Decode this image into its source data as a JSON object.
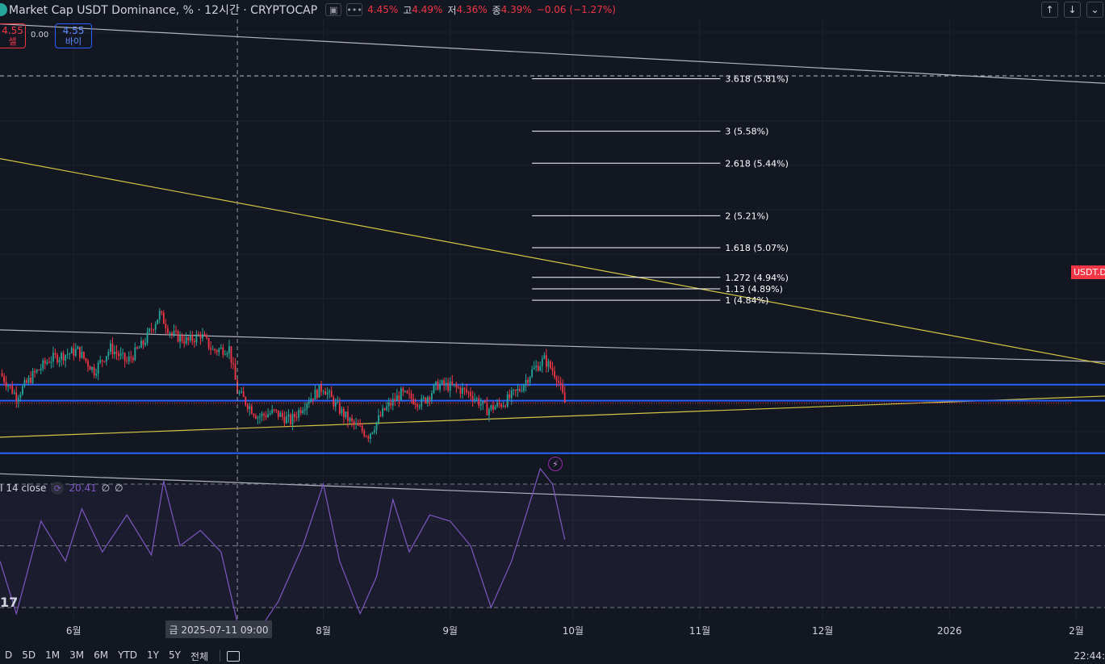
{
  "header": {
    "title": "Market Cap USDT Dominance, % · 12시간 · CRYPTOCAP",
    "ohlc": {
      "open_value": "4.45%",
      "high_label": "고",
      "high_value": "4.49%",
      "low_label": "저",
      "low_value": "4.36%",
      "close_label": "종",
      "close_value": "4.39%",
      "change": "−0.06 (−1.27%)"
    }
  },
  "order_buttons": {
    "sell_price": "4.55",
    "sell_label": "셀",
    "spread": "0.00",
    "buy_price": "4.55",
    "buy_label": "바이"
  },
  "price_label": "USDT.D",
  "rsi_legend": {
    "label": "I 14 close",
    "value": "20.41",
    "extra1": "∅",
    "extra2": "∅"
  },
  "crosshair_date": "금 2025-07-11  09:00",
  "range_buttons": [
    "D",
    "5D",
    "1M",
    "3M",
    "6M",
    "YTD",
    "1Y",
    "5Y",
    "전체"
  ],
  "clock": "22:44:",
  "icons": {
    "header_camera": "camera-icon",
    "header_more": "more-dots-icon",
    "nav_up": "arrow-up-icon",
    "nav_down": "arrow-down-icon",
    "alert": "lightning-icon",
    "calendar": "calendar-icon",
    "rsi_source": "refresh-icon",
    "tv_logo": "tradingview-logo-icon"
  },
  "colors": {
    "up": "#26a69a",
    "down": "#f23645",
    "support": "#2962ff",
    "trend_yellow": "#d4c545",
    "channel": "#b2b5be",
    "rsi": "#7e57c2"
  },
  "chart_data": {
    "type": "candlestick",
    "x_ticks": [
      {
        "date": "2025-06-01",
        "label": "6월"
      },
      {
        "date": "2025-08-01",
        "label": "8월"
      },
      {
        "date": "2025-09-01",
        "label": "9월"
      },
      {
        "date": "2025-10-01",
        "label": "10월"
      },
      {
        "date": "2025-11-01",
        "label": "11월"
      },
      {
        "date": "2025-12-01",
        "label": "12월"
      },
      {
        "date": "2026-01-01",
        "label": "2026"
      },
      {
        "date": "2026-02-01",
        "label": "2월"
      }
    ],
    "xlim": [
      "2025-05-14",
      "2026-02-08"
    ],
    "ylim": [
      4.07,
      6.07
    ],
    "last_close": 4.39,
    "close_path": [
      [
        "2025-05-14",
        4.52
      ],
      [
        "2025-05-18",
        4.42
      ],
      [
        "2025-05-22",
        4.51
      ],
      [
        "2025-05-26",
        4.58
      ],
      [
        "2025-06-02",
        4.62
      ],
      [
        "2025-06-06",
        4.53
      ],
      [
        "2025-06-10",
        4.63
      ],
      [
        "2025-06-14",
        4.57
      ],
      [
        "2025-06-18",
        4.65
      ],
      [
        "2025-06-22",
        4.78
      ],
      [
        "2025-06-25",
        4.69
      ],
      [
        "2025-06-29",
        4.66
      ],
      [
        "2025-07-02",
        4.69
      ],
      [
        "2025-07-05",
        4.62
      ],
      [
        "2025-07-09",
        4.63
      ],
      [
        "2025-07-11",
        4.44
      ],
      [
        "2025-07-16",
        4.33
      ],
      [
        "2025-07-20",
        4.35
      ],
      [
        "2025-07-24",
        4.31
      ],
      [
        "2025-07-28",
        4.4
      ],
      [
        "2025-08-01",
        4.46
      ],
      [
        "2025-08-04",
        4.38
      ],
      [
        "2025-08-08",
        4.3
      ],
      [
        "2025-08-12",
        4.25
      ],
      [
        "2025-08-16",
        4.36
      ],
      [
        "2025-08-20",
        4.43
      ],
      [
        "2025-08-25",
        4.39
      ],
      [
        "2025-08-29",
        4.47
      ],
      [
        "2025-09-02",
        4.46
      ],
      [
        "2025-09-06",
        4.43
      ],
      [
        "2025-09-10",
        4.36
      ],
      [
        "2025-09-14",
        4.39
      ],
      [
        "2025-09-18",
        4.45
      ],
      [
        "2025-09-21",
        4.53
      ],
      [
        "2025-09-24",
        4.58
      ],
      [
        "2025-09-27",
        4.51
      ],
      [
        "2025-09-29",
        4.39
      ]
    ],
    "rsi": {
      "levels": [
        70,
        50,
        30
      ],
      "path": [
        [
          "2025-05-14",
          45
        ],
        [
          "2025-05-18",
          28
        ],
        [
          "2025-05-24",
          58
        ],
        [
          "2025-05-30",
          45
        ],
        [
          "2025-06-03",
          62
        ],
        [
          "2025-06-08",
          48
        ],
        [
          "2025-06-14",
          60
        ],
        [
          "2025-06-20",
          47
        ],
        [
          "2025-06-23",
          71
        ],
        [
          "2025-06-27",
          50
        ],
        [
          "2025-07-02",
          55
        ],
        [
          "2025-07-07",
          48
        ],
        [
          "2025-07-11",
          25
        ],
        [
          "2025-07-16",
          22
        ],
        [
          "2025-07-21",
          32
        ],
        [
          "2025-07-27",
          50
        ],
        [
          "2025-08-01",
          70
        ],
        [
          "2025-08-05",
          45
        ],
        [
          "2025-08-10",
          28
        ],
        [
          "2025-08-14",
          40
        ],
        [
          "2025-08-18",
          65
        ],
        [
          "2025-08-22",
          48
        ],
        [
          "2025-08-27",
          60
        ],
        [
          "2025-09-01",
          58
        ],
        [
          "2025-09-06",
          50
        ],
        [
          "2025-09-11",
          30
        ],
        [
          "2025-09-16",
          45
        ],
        [
          "2025-09-20",
          62
        ],
        [
          "2025-09-23",
          75
        ],
        [
          "2025-09-26",
          70
        ],
        [
          "2025-09-29",
          52
        ]
      ]
    },
    "horizontal_lines": [
      4.47,
      4.4,
      4.17
    ],
    "fib_levels": [
      {
        "label": "3.618 (5.81%)",
        "value": 5.81
      },
      {
        "label": "3 (5.58%)",
        "value": 5.58
      },
      {
        "label": "2.618 (5.44%)",
        "value": 5.44
      },
      {
        "label": "2 (5.21%)",
        "value": 5.21
      },
      {
        "label": "1.618 (5.07%)",
        "value": 5.07
      },
      {
        "label": "1.272 (4.94%)",
        "value": 4.94
      },
      {
        "label": "1.13 (4.89%)",
        "value": 4.89
      },
      {
        "label": "1 (4.84%)",
        "value": 4.84
      }
    ],
    "fib_range": [
      "2025-09-21",
      "2025-11-06"
    ],
    "trendlines": [
      {
        "style": "channel",
        "points": [
          [
            "2025-05-14",
            6.05
          ],
          [
            "2026-02-08",
            5.79
          ]
        ]
      },
      {
        "style": "channel",
        "points": [
          [
            "2025-05-14",
            4.71
          ],
          [
            "2026-02-08",
            4.57
          ]
        ]
      },
      {
        "style": "channel",
        "points": [
          [
            "2025-05-14",
            4.08
          ],
          [
            "2026-02-08",
            3.9
          ]
        ]
      },
      {
        "style": "yellow",
        "points": [
          [
            "2025-05-14",
            5.46
          ],
          [
            "2026-02-08",
            4.56
          ]
        ]
      },
      {
        "style": "yellow",
        "points": [
          [
            "2025-05-14",
            4.24
          ],
          [
            "2026-02-08",
            4.42
          ]
        ]
      }
    ],
    "crosshair_x": "2025-07-11"
  }
}
